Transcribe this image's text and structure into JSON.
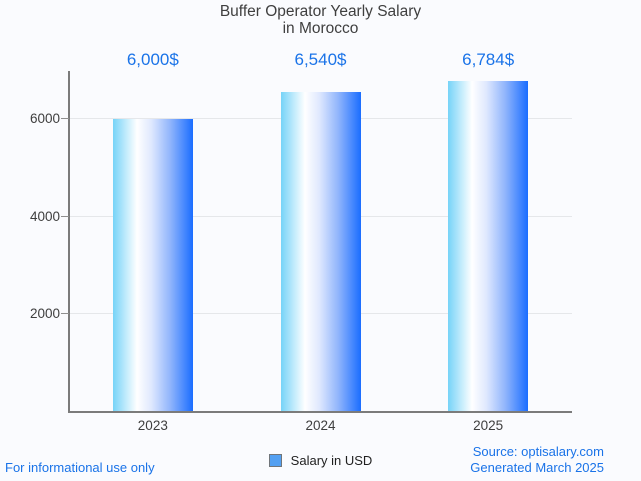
{
  "chart_data": {
    "type": "bar",
    "title_lines": [
      "Buffer Operator Yearly Salary",
      "in Morocco"
    ],
    "title": "Buffer Operator Yearly Salary in Morocco",
    "categories": [
      "2023",
      "2024",
      "2025"
    ],
    "values": [
      6000,
      6540,
      6784
    ],
    "value_labels": [
      "6,000$",
      "6,540$",
      "6,784$"
    ],
    "series": [
      {
        "name": "Salary in USD",
        "values": [
          6000,
          6540,
          6784
        ]
      }
    ],
    "xlabel": "",
    "ylabel": "",
    "ylim": [
      0,
      7000
    ],
    "y_ticks": [
      2000,
      4000,
      6000
    ],
    "y_tick_labels": [
      "2000",
      "4000",
      "6000"
    ],
    "grid": true,
    "legend_position": "bottom",
    "bar_color_gradient": [
      "#76d3f8",
      "#ffffff",
      "#1a6dff"
    ]
  },
  "legend": {
    "label": "Salary in USD",
    "swatch_color": "#53a0f2"
  },
  "footer": {
    "left_note": "For informational use only",
    "source": "Source: optisalary.com",
    "generated": "Generated March 2025"
  },
  "colors": {
    "accent_blue": "#1a73e8",
    "background": "#fafbfe",
    "axis": "#7b7b7b",
    "gridline": "#e5e7ea",
    "text_dark": "#3e3e3e"
  }
}
